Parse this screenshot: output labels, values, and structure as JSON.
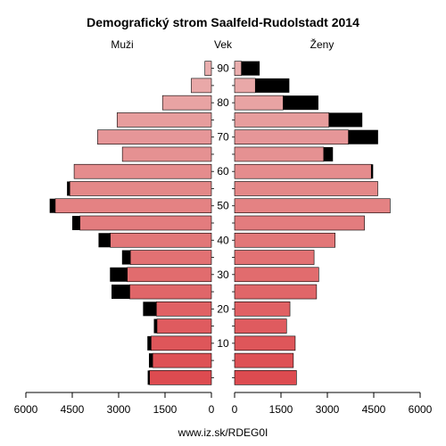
{
  "chart_data": {
    "type": "bar",
    "title": "Demografický strom Saalfeld-Rudolstadt 2014",
    "left_label": "Muži",
    "center_label": "Vek",
    "right_label": "Ženy",
    "footer": "www.iz.sk/RDEG0I",
    "age_groups": [
      "0-4",
      "5-9",
      "10-14",
      "15-19",
      "20-24",
      "25-29",
      "30-34",
      "35-39",
      "40-44",
      "45-49",
      "50-54",
      "55-59",
      "60-64",
      "65-69",
      "70-74",
      "75-79",
      "80-84",
      "85-89",
      "90+"
    ],
    "age_ticks": [
      "10",
      "20",
      "30",
      "40",
      "50",
      "60",
      "70",
      "80",
      "90"
    ],
    "x_ticks_left": [
      "6000",
      "4500",
      "3000",
      "1500",
      "0"
    ],
    "x_ticks_right": [
      "0",
      "1500",
      "3000",
      "4500",
      "6000"
    ],
    "xlim": [
      0,
      6000
    ],
    "series": [
      {
        "name": "Muži",
        "base": [
          2000,
          1900,
          1950,
          1760,
          1780,
          2640,
          2720,
          2620,
          3270,
          4250,
          5050,
          4580,
          4440,
          2880,
          3680,
          3050,
          1580,
          650,
          210
        ],
        "excess": [
          60,
          120,
          120,
          100,
          430,
          590,
          560,
          270,
          380,
          250,
          180,
          90,
          0,
          0,
          0,
          0,
          0,
          0,
          0
        ]
      },
      {
        "name": "Ženy",
        "base": [
          2000,
          1900,
          1960,
          1680,
          1790,
          2650,
          2720,
          2570,
          3250,
          4200,
          5030,
          4630,
          4420,
          2880,
          3680,
          3050,
          1570,
          670,
          220
        ],
        "excess": [
          0,
          0,
          0,
          0,
          0,
          0,
          0,
          0,
          0,
          0,
          0,
          0,
          60,
          300,
          960,
          1080,
          1140,
          1100,
          590
        ]
      }
    ],
    "colors": {
      "male": [
        "#dd4b50",
        "#de5155",
        "#de565a",
        "#df5b5f",
        "#e06164",
        "#e06669",
        "#e16c6e",
        "#e27173",
        "#e27778",
        "#e37c7e",
        "#e48283",
        "#e48888",
        "#e58c8d",
        "#e59192",
        "#e69698",
        "#e79d9d",
        "#e8a3a3",
        "#e9a8a8",
        "#eaaeae"
      ],
      "female": [
        "#dd4b50",
        "#de5155",
        "#de565a",
        "#df5b5f",
        "#e06164",
        "#e06669",
        "#e16c6e",
        "#e27173",
        "#e27778",
        "#e37c7e",
        "#e48283",
        "#e48888",
        "#e58c8d",
        "#e59192",
        "#e69698",
        "#e79d9d",
        "#e8a3a3",
        "#e9a8a8",
        "#eaaeae"
      ],
      "excess": "#000000"
    }
  }
}
